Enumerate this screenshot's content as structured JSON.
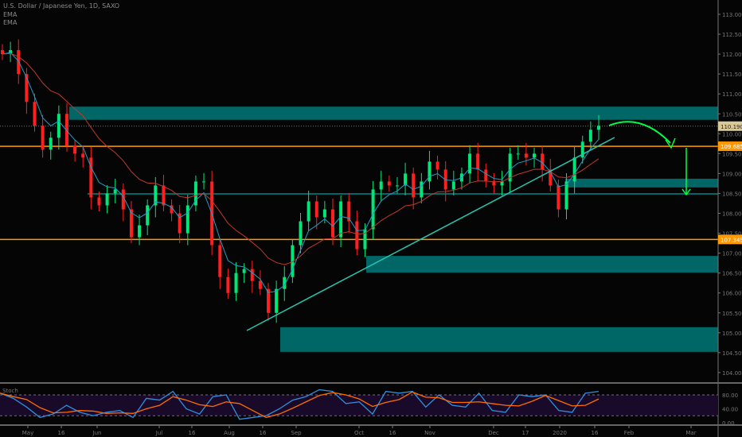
{
  "chart_data": {
    "type": "candlestick",
    "title": "U.S. Dollar / Japanese Yen, 1D, SAXO",
    "indicators": [
      "EMA",
      "EMA"
    ],
    "ylim": [
      103.8,
      113.2
    ],
    "y_ticks": [
      "113.000",
      "112.500",
      "112.000",
      "111.500",
      "111.000",
      "110.500",
      "110.000",
      "109.500",
      "109.000",
      "108.500",
      "108.000",
      "107.500",
      "107.000",
      "106.500",
      "106.000",
      "105.500",
      "105.000",
      "104.500",
      "104.000"
    ],
    "x_ticks": [
      "May",
      "16",
      "Jun",
      "Jul",
      "16",
      "Aug",
      "16",
      "Sep",
      "Oct",
      "16",
      "Nov",
      "Dec",
      "17",
      "2020",
      "16",
      "Feb",
      "Mar"
    ],
    "closes": [
      112.0,
      112.1,
      111.5,
      110.8,
      110.2,
      109.6,
      109.9,
      110.5,
      109.7,
      109.5,
      109.4,
      108.4,
      108.2,
      108.5,
      108.6,
      108.1,
      107.4,
      107.7,
      108.2,
      108.7,
      108.2,
      108.0,
      107.5,
      108.2,
      108.8,
      108.8,
      107.2,
      106.4,
      106.0,
      106.5,
      106.6,
      106.3,
      106.1,
      105.5,
      106.1,
      106.4,
      107.2,
      107.8,
      108.3,
      107.9,
      108.1,
      107.4,
      108.3,
      107.8,
      107.1,
      107.6,
      108.6,
      108.8,
      108.7,
      108.7,
      109.0,
      108.4,
      108.8,
      109.3,
      109.1,
      108.6,
      108.8,
      109.0,
      109.5,
      109.1,
      108.8,
      108.7,
      108.8,
      109.5,
      109.5,
      109.4,
      109.5,
      109.1,
      108.7,
      108.1,
      108.8,
      109.4,
      109.8,
      110.1,
      110.2
    ],
    "price_labels": [
      {
        "value": 110.19,
        "text": "110.190",
        "color": "#d9c99a"
      },
      {
        "value": 109.685,
        "text": "109.685",
        "color": "#ff9800"
      },
      {
        "value": 107.345,
        "text": "107.345",
        "color": "#ff9800"
      }
    ],
    "zones": [
      [
        110.35,
        110.68
      ],
      [
        108.65,
        108.87
      ],
      [
        106.51,
        106.93
      ],
      [
        104.52,
        105.14
      ]
    ],
    "support_line": 108.49,
    "colors": {
      "up": "#00e676",
      "down": "#ff1f1f",
      "zone": "#006666",
      "level": "#ff9800",
      "ema_fast": "#1e9fc8",
      "ema_slow": "#c0392b",
      "trend": "#26c6b0",
      "arrow": "#00ff44"
    },
    "stoch": {
      "label": "Stoch",
      "levels": [
        "80.00",
        "40.00",
        "0.00"
      ],
      "k": [
        85,
        70,
        45,
        15,
        25,
        50,
        30,
        20,
        30,
        35,
        15,
        70,
        65,
        90,
        40,
        25,
        75,
        80,
        10,
        15,
        20,
        40,
        65,
        75,
        95,
        90,
        55,
        60,
        25,
        90,
        85,
        90,
        45,
        80,
        50,
        45,
        85,
        35,
        30,
        80,
        75,
        80,
        35,
        30,
        85,
        90
      ]
    }
  }
}
